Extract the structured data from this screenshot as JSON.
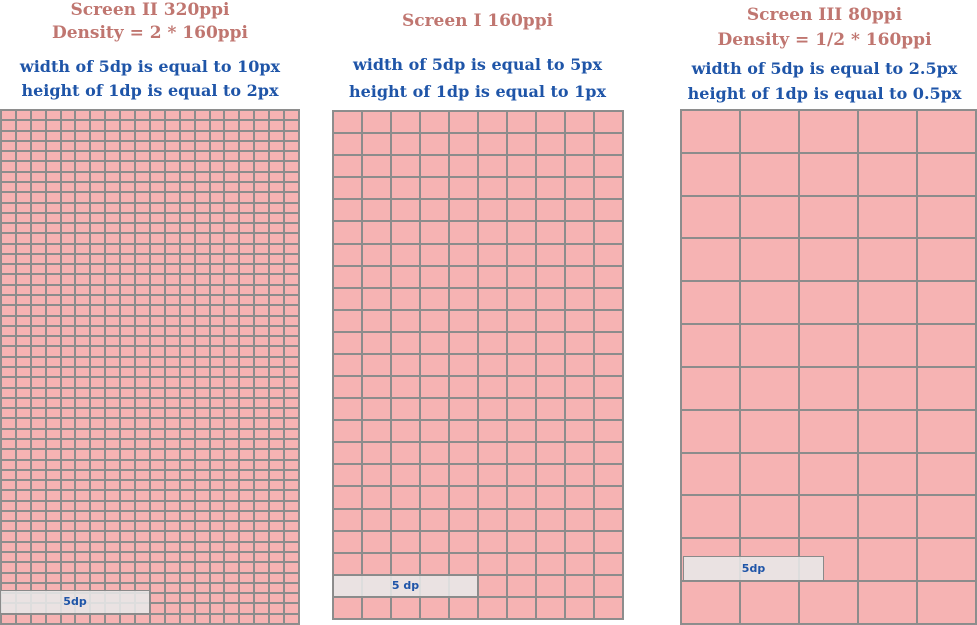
{
  "colors": {
    "title": "#c07670",
    "description": "#1f55a8",
    "cell_fill": "#f6b3b3",
    "cell_border": "#8c8c8c",
    "dp_bar_fill": "#e8e8e8"
  },
  "screen_ii": {
    "title": "Screen II 320ppi",
    "density": "Density = 2 * 160ppi",
    "width_line": "width of 5dp is equal to 10px",
    "height_line": "height of 1dp is equal to 2px",
    "dp_label": "5dp"
  },
  "screen_i": {
    "title": "Screen I 160ppi",
    "width_line": "width of 5dp is equal to 5px",
    "height_line": "height of 1dp is equal to 1px",
    "dp_label": "5 dp"
  },
  "screen_iii": {
    "title": "Screen III 80ppi",
    "density": "Density = 1/2 * 160ppi",
    "width_line": "width of 5dp is equal to 2.5px",
    "height_line": "height of 1dp is equal to 0.5px",
    "dp_label": "5dp"
  }
}
